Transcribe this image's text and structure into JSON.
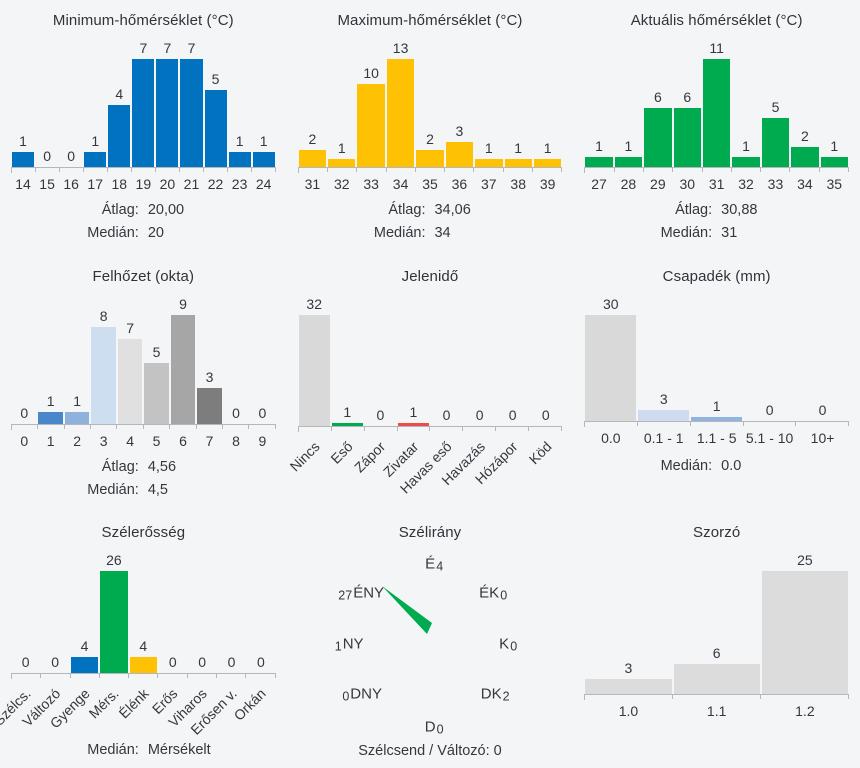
{
  "page": {
    "background": "#f4f5f7",
    "text_color": "#34383e"
  },
  "chart_data": [
    {
      "type": "bar",
      "title": "Minimum-hőmérséklet (°C)",
      "categories": [
        "14",
        "15",
        "16",
        "17",
        "18",
        "19",
        "20",
        "21",
        "22",
        "23",
        "24"
      ],
      "values": [
        1,
        0,
        0,
        1,
        4,
        7,
        7,
        7,
        5,
        1,
        1
      ],
      "bar_color": "#0072c0",
      "ylim": [
        0,
        7
      ],
      "stats": [
        {
          "label": "Átlag:",
          "value": "20,00"
        },
        {
          "label": "Medián:",
          "value": "20"
        }
      ]
    },
    {
      "type": "bar",
      "title": "Maximum-hőmérséklet (°C)",
      "categories": [
        "31",
        "32",
        "33",
        "34",
        "35",
        "36",
        "37",
        "38",
        "39"
      ],
      "values": [
        2,
        1,
        10,
        13,
        2,
        3,
        1,
        1,
        1
      ],
      "bar_color": "#ffc103",
      "ylim": [
        0,
        13
      ],
      "stats": [
        {
          "label": "Átlag:",
          "value": "34,06"
        },
        {
          "label": "Medián:",
          "value": "34"
        }
      ]
    },
    {
      "type": "bar",
      "title": "Aktuális hőmérséklet (°C)",
      "categories": [
        "27",
        "28",
        "29",
        "30",
        "31",
        "32",
        "33",
        "34",
        "35"
      ],
      "values": [
        1,
        1,
        6,
        6,
        11,
        1,
        5,
        2,
        1
      ],
      "bar_color": "#00ab50",
      "ylim": [
        0,
        11
      ],
      "stats": [
        {
          "label": "Átlag:",
          "value": "30,88"
        },
        {
          "label": "Medián:",
          "value": "31"
        }
      ]
    },
    {
      "type": "bar",
      "title": "Felhőzet (okta)",
      "categories": [
        "0",
        "1",
        "2",
        "3",
        "4",
        "5",
        "6",
        "7",
        "8",
        "9"
      ],
      "values": [
        0,
        1,
        1,
        8,
        7,
        5,
        9,
        3,
        0,
        0
      ],
      "bar_colors": [
        "#c3c3c4",
        "#4a87c9",
        "#8fb2dd",
        "#cddef0",
        "#e0e0e1",
        "#c3c3c4",
        "#a6a6a7",
        "#7d7d7e",
        "#c3c3c4",
        "#c3c3c4"
      ],
      "ylim": [
        0,
        9
      ],
      "stats": [
        {
          "label": "Átlag:",
          "value": "4,56"
        },
        {
          "label": "Medián:",
          "value": "4,5"
        }
      ]
    },
    {
      "type": "bar",
      "title": "Jelenidő",
      "categories": [
        "Nincs",
        "Eső",
        "Zápor",
        "Zivatar",
        "Havas eső",
        "Havazás",
        "Hózápor",
        "Köd"
      ],
      "values": [
        32,
        1,
        0,
        1,
        0,
        0,
        0,
        0
      ],
      "bar_colors": [
        "#d9d9da",
        "#00ab50",
        "#d9d9da",
        "#ee4b4b",
        "#d9d9da",
        "#d9d9da",
        "#d9d9da",
        "#d9d9da"
      ],
      "ylim": [
        0,
        32
      ],
      "rotated_labels": true,
      "stats": []
    },
    {
      "type": "bar",
      "title": "Csapadék (mm)",
      "categories": [
        "0.0",
        "0.1 - 1",
        "1.1 - 5",
        "5.1 - 10",
        "10+"
      ],
      "values": [
        30,
        3,
        1,
        0,
        0
      ],
      "bar_colors": [
        "#d9d9da",
        "#cfdcf0",
        "#92b4e0",
        "#d9d9da",
        "#d9d9da"
      ],
      "ylim": [
        0,
        30
      ],
      "stats": [
        {
          "label": "Medián:",
          "value": "0.0"
        }
      ]
    },
    {
      "type": "bar",
      "title": "Szélerősség",
      "categories": [
        "Szélcs.",
        "Változó",
        "Gyenge",
        "Mérs.",
        "Élénk",
        "Erős",
        "Viharos",
        "Erősen v.",
        "Orkán"
      ],
      "values": [
        0,
        0,
        4,
        26,
        4,
        0,
        0,
        0,
        0
      ],
      "bar_colors": [
        "#d9d9da",
        "#d9d9da",
        "#0072c0",
        "#00ab50",
        "#ffc103",
        "#d9d9da",
        "#d9d9da",
        "#d9d9da",
        "#d9d9da"
      ],
      "ylim": [
        0,
        26
      ],
      "rotated_labels": true,
      "stats": [
        {
          "label": "Medián:",
          "value": "Mérsékelt"
        }
      ]
    },
    {
      "type": "compass",
      "title": "Szélirány",
      "points": [
        {
          "pos": "n",
          "dir": "É",
          "count": "4"
        },
        {
          "pos": "ne",
          "dir": "ÉK",
          "count": "0"
        },
        {
          "pos": "e",
          "dir": "K",
          "count": "0"
        },
        {
          "pos": "se",
          "dir": "DK",
          "count": "2"
        },
        {
          "pos": "s",
          "dir": "D",
          "count": "0"
        },
        {
          "pos": "sw",
          "dir": "DNY",
          "count": "0",
          "count_first": true
        },
        {
          "pos": "w",
          "dir": "NY",
          "count": "1",
          "count_first": true
        },
        {
          "pos": "nw",
          "dir": "ÉNY",
          "count": "27",
          "count_first": true
        }
      ],
      "needle": {
        "direction": "ÉNY",
        "color": "#00ab50"
      },
      "footer": "Szélcsend / Változó: 0"
    },
    {
      "type": "bar",
      "title": "Szorzó",
      "categories": [
        "1.0",
        "1.1",
        "1.2"
      ],
      "values": [
        3,
        6,
        25
      ],
      "bar_color": "#dcdcdd",
      "ylim": [
        0,
        25
      ],
      "stats": []
    }
  ]
}
